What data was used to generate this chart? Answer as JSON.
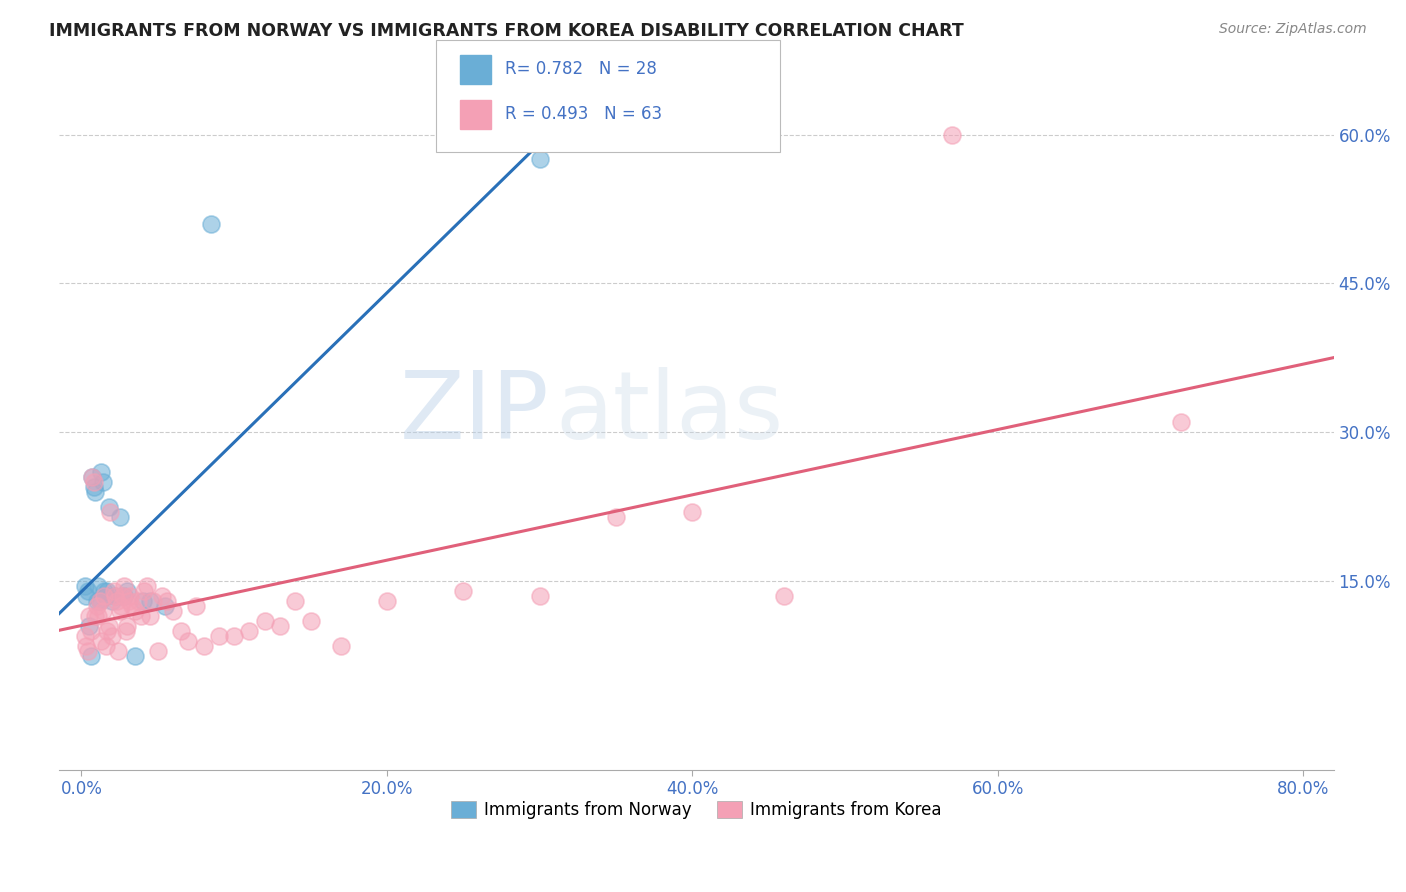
{
  "title": "IMMIGRANTS FROM NORWAY VS IMMIGRANTS FROM KOREA DISABILITY CORRELATION CHART",
  "source": "Source: ZipAtlas.com",
  "xlabel_ticks": [
    "0.0%",
    "20.0%",
    "40.0%",
    "60.0%",
    "80.0%"
  ],
  "xlabel_values": [
    0.0,
    20.0,
    40.0,
    60.0,
    80.0
  ],
  "ylabel_ticks": [
    "15.0%",
    "30.0%",
    "45.0%",
    "60.0%"
  ],
  "ylabel_values": [
    15.0,
    30.0,
    45.0,
    60.0
  ],
  "norway_R": 0.782,
  "norway_N": 28,
  "korea_R": 0.493,
  "korea_N": 63,
  "norway_color": "#6aaed6",
  "korea_color": "#f4a0b5",
  "norway_line_color": "#2970b8",
  "korea_line_color": "#e0607a",
  "norway_x": [
    0.2,
    0.3,
    0.4,
    0.5,
    0.6,
    0.7,
    0.8,
    0.9,
    1.0,
    1.1,
    1.2,
    1.3,
    1.4,
    1.5,
    1.6,
    1.7,
    1.8,
    2.0,
    2.2,
    2.5,
    2.8,
    3.0,
    3.5,
    4.0,
    4.5,
    5.5,
    8.5,
    30.0
  ],
  "norway_y": [
    14.5,
    13.5,
    14.0,
    10.5,
    7.5,
    25.5,
    24.5,
    24.0,
    13.0,
    14.5,
    13.0,
    26.0,
    25.0,
    14.0,
    13.5,
    14.0,
    22.5,
    13.0,
    13.5,
    21.5,
    13.5,
    14.0,
    7.5,
    13.0,
    13.0,
    12.5,
    51.0,
    57.5
  ],
  "korea_x": [
    0.2,
    0.3,
    0.4,
    0.5,
    0.6,
    0.7,
    0.8,
    0.9,
    1.0,
    1.1,
    1.2,
    1.3,
    1.4,
    1.5,
    1.6,
    1.7,
    1.8,
    1.9,
    2.0,
    2.1,
    2.2,
    2.3,
    2.4,
    2.5,
    2.6,
    2.7,
    2.8,
    2.9,
    3.0,
    3.1,
    3.2,
    3.3,
    3.5,
    3.7,
    3.9,
    4.1,
    4.3,
    4.5,
    4.7,
    5.0,
    5.3,
    5.6,
    6.0,
    6.5,
    7.0,
    7.5,
    8.0,
    9.0,
    10.0,
    11.0,
    12.0,
    13.0,
    14.0,
    15.0,
    17.0,
    20.0,
    25.0,
    30.0,
    35.0,
    40.0,
    46.0,
    57.0,
    72.0
  ],
  "korea_y": [
    9.5,
    8.5,
    8.0,
    11.5,
    10.0,
    25.5,
    25.0,
    11.5,
    12.5,
    11.5,
    13.0,
    9.0,
    12.0,
    13.5,
    8.5,
    10.0,
    10.5,
    22.0,
    9.5,
    14.0,
    13.5,
    13.0,
    8.0,
    12.0,
    12.5,
    13.5,
    14.5,
    10.0,
    10.5,
    13.0,
    13.5,
    12.5,
    12.0,
    13.0,
    11.5,
    14.0,
    14.5,
    11.5,
    13.0,
    8.0,
    13.5,
    13.0,
    12.0,
    10.0,
    9.0,
    12.5,
    8.5,
    9.5,
    9.5,
    10.0,
    11.0,
    10.5,
    13.0,
    11.0,
    8.5,
    13.0,
    14.0,
    13.5,
    21.5,
    22.0,
    13.5,
    60.0,
    31.0
  ],
  "watermark_zip": "ZIP",
  "watermark_atlas": "atlas",
  "xmin": -1.5,
  "xmax": 82.0,
  "ymin": -4.0,
  "ymax": 68.0
}
